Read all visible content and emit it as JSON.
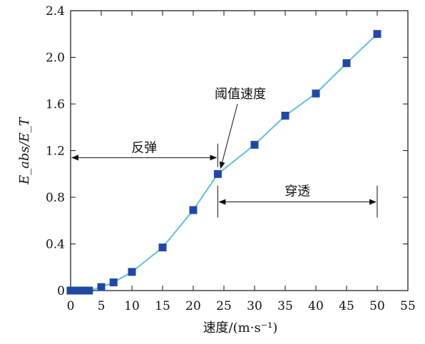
{
  "chart_data": {
    "type": "line",
    "xlabel": "速度/(m·s⁻¹)",
    "ylabel": "E_abs/E_T",
    "xlim": [
      0,
      55
    ],
    "ylim": [
      0,
      2.4
    ],
    "xticks": [
      0,
      5,
      10,
      15,
      20,
      25,
      30,
      35,
      40,
      45,
      50,
      55
    ],
    "yticks": [
      0,
      0.4,
      0.8,
      1.2,
      1.6,
      2.0,
      2.4
    ],
    "ytick_labels": [
      "0",
      "0.4",
      "0.8",
      "1.2",
      "1.6",
      "2.0",
      "2.4"
    ],
    "grid": false,
    "series": [
      {
        "x": [
          0,
          0.5,
          1,
          1.5,
          2,
          2.5,
          3,
          5,
          7,
          10,
          15,
          20,
          24,
          30,
          35,
          40,
          45,
          50
        ],
        "y": [
          0,
          0,
          0,
          0,
          0,
          0,
          0,
          0.03,
          0.07,
          0.16,
          0.37,
          0.69,
          1.0,
          1.25,
          1.5,
          1.69,
          1.95,
          2.2
        ],
        "line_color": "#6cc5d4",
        "marker_color": "#1f49a3"
      }
    ],
    "annotations": {
      "rebound": {
        "text": "反弹",
        "x_from": 0,
        "x_to": 24,
        "y": 1.14
      },
      "penetration": {
        "text": "穿透",
        "x_from": 24,
        "x_to": 50,
        "y": 0.76
      },
      "threshold": {
        "text": "阈值速度",
        "point_x": 24,
        "point_y": 1.0
      },
      "threshold_marker_x": 24
    }
  }
}
